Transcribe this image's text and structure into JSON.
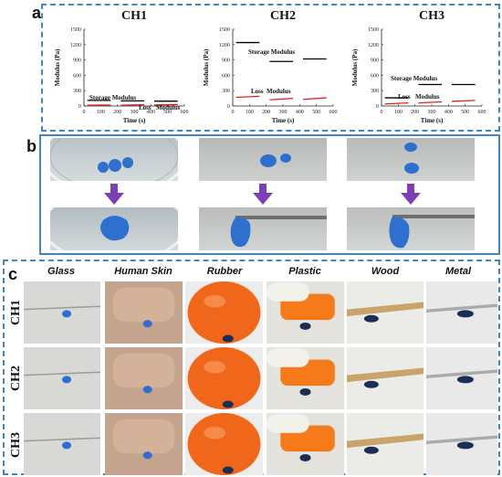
{
  "panels": {
    "a": "a",
    "b": "b",
    "c": "c"
  },
  "colors": {
    "border": "#3f86c7",
    "storage": "#000000",
    "loss": "#e0201a",
    "arrow": "#7d3fb8",
    "rubber": "#f0661a",
    "plastic": "#f57a1a",
    "gel": "#2f6fd0",
    "wood": "#c9a46a"
  },
  "chart_data": [
    {
      "type": "line",
      "title": "CH1",
      "xlabel": "Time (s)",
      "ylabel": "Modulus (Pa)",
      "xlim": [
        0,
        600
      ],
      "ylim": [
        0,
        1500
      ],
      "xticks": [
        "0",
        "100",
        "200",
        "300",
        "400",
        "500",
        "600"
      ],
      "yticks": [
        "0",
        "300",
        "600",
        "900",
        "1200",
        "1500"
      ],
      "annotations": [
        "Storage Modulus",
        "Loss",
        "Modulus"
      ],
      "series": [
        {
          "role": "storage",
          "segments": [
            {
              "x": [
                20,
                160
              ],
              "y": [
                110,
                110
              ]
            },
            {
              "x": [
                220,
                360
              ],
              "y": [
                100,
                100
              ]
            },
            {
              "x": [
                420,
                560
              ],
              "y": [
                95,
                95
              ]
            }
          ]
        },
        {
          "role": "loss",
          "segments": [
            {
              "x": [
                20,
                160
              ],
              "y": [
                15,
                20
              ]
            },
            {
              "x": [
                220,
                360
              ],
              "y": [
                15,
                25
              ]
            },
            {
              "x": [
                420,
                560
              ],
              "y": [
                20,
                30
              ]
            }
          ]
        }
      ]
    },
    {
      "type": "line",
      "title": "CH2",
      "xlabel": "Time (s)",
      "ylabel": "Modulus (Pa)",
      "xlim": [
        0,
        600
      ],
      "ylim": [
        0,
        1500
      ],
      "xticks": [
        "0",
        "100",
        "200",
        "300",
        "400",
        "500",
        "600"
      ],
      "yticks": [
        "0",
        "300",
        "600",
        "900",
        "1200",
        "1500"
      ],
      "annotations": [
        "Storage Modulus",
        "Loss",
        "Modulus"
      ],
      "series": [
        {
          "role": "storage",
          "segments": [
            {
              "x": [
                20,
                160
              ],
              "y": [
                1240,
                1240
              ]
            },
            {
              "x": [
                220,
                360
              ],
              "y": [
                870,
                870
              ]
            },
            {
              "x": [
                420,
                560
              ],
              "y": [
                920,
                920
              ]
            }
          ]
        },
        {
          "role": "loss",
          "segments": [
            {
              "x": [
                20,
                160
              ],
              "y": [
                170,
                190
              ]
            },
            {
              "x": [
                220,
                360
              ],
              "y": [
                120,
                150
              ]
            },
            {
              "x": [
                420,
                560
              ],
              "y": [
                130,
                160
              ]
            }
          ]
        }
      ]
    },
    {
      "type": "line",
      "title": "CH3",
      "xlabel": "Time (s)",
      "ylabel": "Modulus (Pa)",
      "xlim": [
        0,
        600
      ],
      "ylim": [
        0,
        1500
      ],
      "xticks": [
        "0",
        "100",
        "200",
        "300",
        "400",
        "500",
        "600"
      ],
      "yticks": [
        "0",
        "300",
        "600",
        "900",
        "1200",
        "1500"
      ],
      "annotations": [
        "Storage Modulus",
        "Loss",
        "Modulus"
      ],
      "series": [
        {
          "role": "storage",
          "segments": [
            {
              "x": [
                20,
                160
              ],
              "y": [
                160,
                160
              ]
            },
            {
              "x": [
                220,
                360
              ],
              "y": [
                420,
                420
              ]
            },
            {
              "x": [
                420,
                560
              ],
              "y": [
                420,
                420
              ]
            }
          ]
        },
        {
          "role": "loss",
          "segments": [
            {
              "x": [
                20,
                160
              ],
              "y": [
                40,
                60
              ]
            },
            {
              "x": [
                220,
                360
              ],
              "y": [
                60,
                80
              ]
            },
            {
              "x": [
                420,
                560
              ],
              "y": [
                90,
                110
              ]
            }
          ]
        }
      ]
    }
  ],
  "photo_grid": {
    "columns": [
      "Glass",
      "Human Skin",
      "Rubber",
      "Plastic",
      "Wood",
      "Metal"
    ],
    "rows": [
      "CH1",
      "CH2",
      "CH3"
    ]
  }
}
